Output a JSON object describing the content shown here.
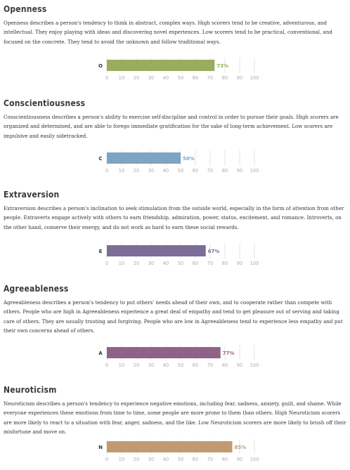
{
  "sections": [
    {
      "title": "Openness",
      "description": "Openness describes a person's tendency to think in abstract, complex ways. High scorers tend to be creative, adventurous, and intellectual. They enjoy playing with ideas and discovering novel experiences. Low scorers tend to be practical, conventional, and focused on the concrete. They tend to avoid the unknown and follow traditional ways."
    },
    {
      "title": "Conscientiousness",
      "description": "Conscientiousness describes a person's ability to exercise self-discipline and control in order to pursue their goals. High scorers are organized and determined, and are able to forego immediate gratification for the sake of long-term achievement. Low scorers are impulsive and easily sidetracked."
    },
    {
      "title": "Extraversion",
      "description": "Extraversion describes a person's inclination to seek stimulation from the outside world, especially in the form of attention from other people. Extraverts engage actively with others to earn friendship, admiration, power, status, excitement, and romance. Introverts, on the other hand, conserve their energy, and do not work as hard to earn these social rewards."
    },
    {
      "title": "Agreeableness",
      "description": "Agreeableness describes a person's tendency to put others' needs ahead of their own, and to cooperate rather than compete with others. People who are high in Agreeableness experience a great deal of empathy and tend to get pleasure out of serving and taking care of others. They are usually trusting and forgiving. People who are low in Agreeableness tend to experience less empathy and put their own concerns ahead of others."
    },
    {
      "title": "Neuroticism",
      "description": "Neuroticism describes a person's tendency to experience negative emotions, including fear, sadness, anxiety, guilt, and shame. While everyone experiences these emotions from time to time, some people are more prone to them than others. High Neuroticism scorers are more likely to react to a situation with fear, anger, sadness, and the like. Low Neuroticism scorers are more likely to brush off their misfortune and move on."
    }
  ],
  "chart_data": [
    {
      "type": "bar",
      "categories": [
        "O"
      ],
      "values": [
        73
      ],
      "value_label": "73%",
      "xticks": [
        "0",
        "10",
        "20",
        "30",
        "40",
        "50",
        "60",
        "70",
        "80",
        "90",
        "100"
      ],
      "xlim": [
        0,
        100
      ],
      "color": "#9aac5f"
    },
    {
      "type": "bar",
      "categories": [
        "C"
      ],
      "values": [
        50
      ],
      "value_label": "50%",
      "xticks": [
        "0",
        "10",
        "20",
        "30",
        "40",
        "50",
        "60",
        "70",
        "80",
        "90",
        "100"
      ],
      "xlim": [
        0,
        100
      ],
      "color": "#7ea4c1"
    },
    {
      "type": "bar",
      "categories": [
        "E"
      ],
      "values": [
        67
      ],
      "value_label": "67%",
      "xticks": [
        "0",
        "10",
        "20",
        "30",
        "40",
        "50",
        "60",
        "70",
        "80",
        "90",
        "100"
      ],
      "xlim": [
        0,
        100
      ],
      "color": "#7b6c98"
    },
    {
      "type": "bar",
      "categories": [
        "A"
      ],
      "values": [
        77
      ],
      "value_label": "77%",
      "xticks": [
        "0",
        "10",
        "20",
        "30",
        "40",
        "50",
        "60",
        "70",
        "80",
        "90",
        "100"
      ],
      "xlim": [
        0,
        100
      ],
      "color": "#8f6386"
    },
    {
      "type": "bar",
      "categories": [
        "N"
      ],
      "values": [
        85
      ],
      "value_label": "85%",
      "xticks": [
        "0",
        "10",
        "20",
        "30",
        "40",
        "50",
        "60",
        "70",
        "80",
        "90",
        "100"
      ],
      "xlim": [
        0,
        100
      ],
      "color": "#c29a72"
    }
  ]
}
